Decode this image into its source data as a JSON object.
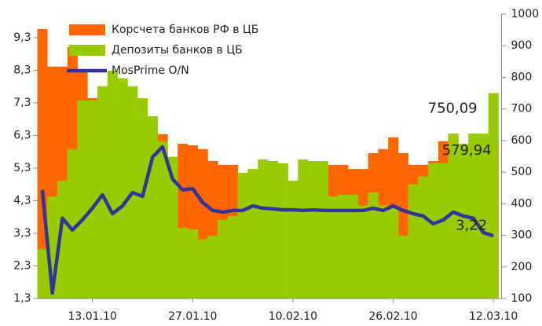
{
  "chart_data": {
    "type": "bar-line",
    "categories": [
      null,
      null,
      null,
      null,
      null,
      "13.01.10",
      null,
      null,
      null,
      null,
      null,
      null,
      null,
      null,
      null,
      "27.01.10",
      null,
      null,
      null,
      null,
      null,
      null,
      null,
      null,
      null,
      "10.02.10",
      null,
      null,
      null,
      null,
      null,
      null,
      null,
      null,
      null,
      "26.02.10",
      null,
      null,
      null,
      null,
      null,
      null,
      null,
      null,
      null,
      "12.03.10"
    ],
    "series": [
      {
        "name": "Корсчета банков РФ в ЦБ",
        "type": "bar",
        "axis": "y2",
        "color": "#ff6600",
        "values": [
          953,
          834,
          834,
          896,
          821,
          734,
          700,
          700,
          700,
          700,
          680,
          640,
          620,
          548,
          590,
          585,
          573,
          535,
          523,
          523,
          480,
          480,
          480,
          480,
          480,
          450,
          480,
          480,
          480,
          523,
          523,
          510,
          510,
          560,
          573,
          610,
          560,
          523,
          523,
          535,
          598,
          610,
          515,
          560,
          560,
          579.94
        ],
        "value_labels": [
          null,
          null,
          null,
          null,
          null,
          null,
          null,
          null,
          null,
          null,
          null,
          null,
          null,
          null,
          null,
          null,
          null,
          null,
          null,
          null,
          null,
          null,
          null,
          null,
          null,
          null,
          null,
          null,
          null,
          null,
          null,
          null,
          null,
          null,
          null,
          null,
          null,
          null,
          null,
          null,
          null,
          null,
          null,
          null,
          null,
          "579,94"
        ]
      },
      {
        "name": "Депозиты банков в ЦБ",
        "type": "bar",
        "axis": "y2",
        "color": "#99cc00",
        "values": [
          257,
          423,
          473,
          573,
          727,
          727,
          772,
          821,
          797,
          772,
          734,
          677,
          598,
          548,
          324,
          319,
          287,
          299,
          349,
          361,
          498,
          510,
          540,
          535,
          528,
          473,
          540,
          535,
          535,
          423,
          428,
          428,
          394,
          436,
          394,
          386,
          299,
          461,
          486,
          528,
          528,
          622,
          590,
          622,
          622,
          750.09
        ],
        "value_labels": [
          null,
          null,
          null,
          null,
          null,
          null,
          null,
          null,
          null,
          null,
          null,
          null,
          null,
          null,
          null,
          null,
          null,
          null,
          null,
          null,
          null,
          null,
          null,
          null,
          null,
          null,
          null,
          null,
          null,
          null,
          null,
          null,
          null,
          null,
          null,
          null,
          null,
          null,
          null,
          null,
          null,
          null,
          null,
          null,
          null,
          "750,09"
        ]
      },
      {
        "name": "MosPrime O/N",
        "type": "line",
        "axis": "y",
        "color": "#333399",
        "values": [
          4.63,
          1.47,
          3.76,
          3.4,
          3.71,
          4.07,
          4.48,
          3.9,
          4.14,
          4.55,
          4.43,
          5.64,
          5.95,
          4.96,
          4.63,
          4.67,
          4.24,
          4.0,
          3.95,
          4.0,
          4.0,
          4.14,
          4.07,
          4.05,
          4.02,
          4.02,
          4.0,
          4.02,
          4.0,
          4.0,
          4.0,
          4.0,
          4.0,
          4.07,
          4.0,
          4.14,
          4.0,
          3.9,
          3.83,
          3.59,
          3.71,
          3.95,
          3.83,
          3.76,
          3.32,
          3.22
        ],
        "value_labels": [
          null,
          null,
          null,
          null,
          null,
          null,
          null,
          null,
          null,
          null,
          null,
          null,
          null,
          null,
          null,
          null,
          null,
          null,
          null,
          null,
          null,
          null,
          null,
          null,
          null,
          null,
          null,
          null,
          null,
          null,
          null,
          null,
          null,
          null,
          null,
          null,
          null,
          null,
          null,
          null,
          null,
          null,
          null,
          null,
          null,
          "3,22"
        ]
      }
    ],
    "ylim": [
      1.3,
      10.02
    ],
    "yticks": [
      {
        "value": 1.3,
        "label": "1,3"
      },
      {
        "value": 2.3,
        "label": "2,3"
      },
      {
        "value": 3.3,
        "label": "3,3"
      },
      {
        "value": 4.3,
        "label": "4,3"
      },
      {
        "value": 5.3,
        "label": "5,3"
      },
      {
        "value": 6.3,
        "label": "6,3"
      },
      {
        "value": 7.3,
        "label": "7,3"
      },
      {
        "value": 8.3,
        "label": "8,3"
      },
      {
        "value": 9.3,
        "label": "9,3"
      }
    ],
    "y2lim": [
      100,
      1000
    ],
    "y2ticks": [
      100,
      200,
      300,
      400,
      500,
      600,
      700,
      800,
      900,
      1000
    ],
    "legend": "top-left"
  }
}
